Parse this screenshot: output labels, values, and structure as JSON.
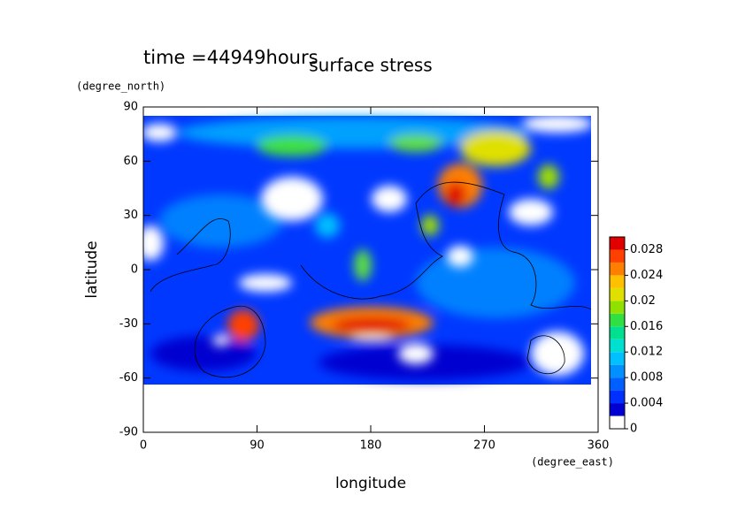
{
  "chart_data": {
    "type": "contour",
    "title": "surface stress",
    "subtitle": "time =44949hours",
    "x_label": "longitude",
    "y_label": "latitude",
    "x_unit": "(degree_east)",
    "y_unit": "(degree_north)",
    "xlim": [
      0,
      360
    ],
    "xticks": [
      0,
      90,
      180,
      270,
      360
    ],
    "ylim": [
      -90,
      90
    ],
    "yticks": [
      -90,
      -60,
      -30,
      0,
      30,
      60,
      90
    ],
    "colorbar": {
      "lim": [
        0,
        0.03
      ],
      "ticks": [
        0,
        0.004,
        0.008,
        0.012,
        0.016,
        0.02,
        0.024,
        0.028
      ],
      "colors": [
        "#ffffff",
        "#0000d0",
        "#0030ff",
        "#0060ff",
        "#0090ff",
        "#00c0ff",
        "#00e0d0",
        "#00e090",
        "#30e040",
        "#90e000",
        "#e0e000",
        "#ffc000",
        "#ff8000",
        "#ff4000",
        "#e00000"
      ]
    }
  }
}
